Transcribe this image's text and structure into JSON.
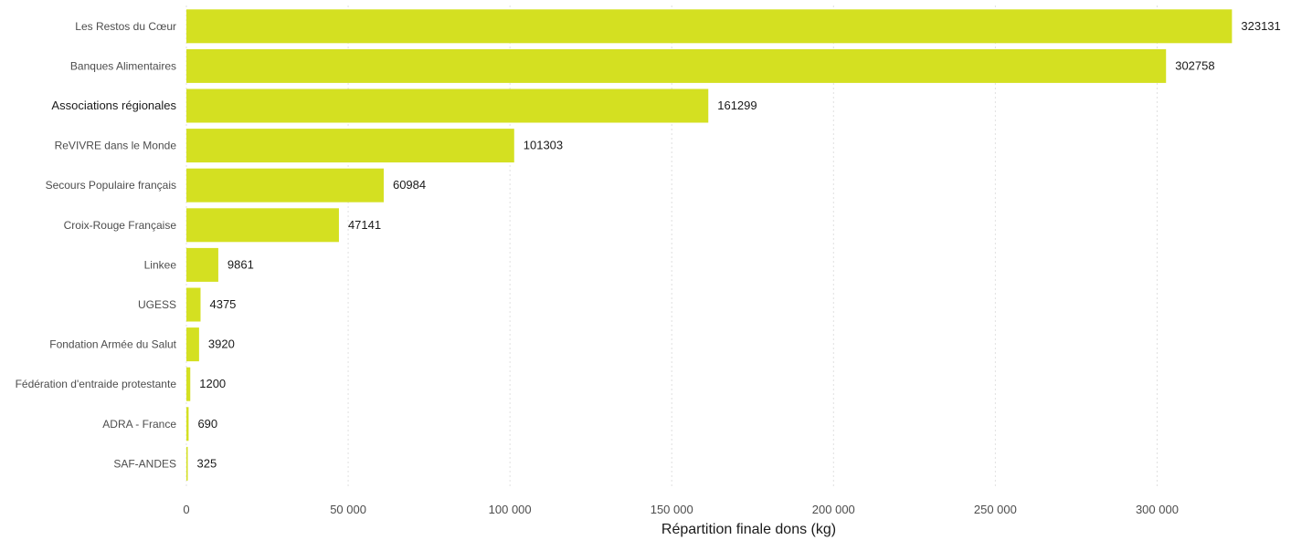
{
  "chart_data": {
    "type": "bar",
    "orientation": "horizontal",
    "categories": [
      "Les Restos du Cœur",
      "Banques Alimentaires",
      "Associations régionales",
      "ReVIVRE dans le Monde",
      "Secours Populaire français",
      "Croix-Rouge Française",
      "Linkee",
      "UGESS",
      "Fondation Armée du Salut",
      "Fédération d'entraide protestante",
      "ADRA - France",
      "SAF-ANDES"
    ],
    "values": [
      323131,
      302758,
      161299,
      101303,
      60984,
      47141,
      9861,
      4375,
      3920,
      1200,
      690,
      325
    ],
    "value_labels": [
      "323131",
      "302758",
      "161299",
      "101303",
      "60984",
      "47141",
      "9861",
      "4375",
      "3920",
      "1200",
      "690",
      "325"
    ],
    "xlabel": "Répartition finale dons (kg)",
    "ylabel": "",
    "xlim": [
      0,
      325000
    ],
    "xticks": [
      0,
      50000,
      100000,
      150000,
      200000,
      250000,
      300000
    ],
    "xtick_labels": [
      "0",
      "50 000",
      "100 000",
      "150 000",
      "200 000",
      "250 000",
      "300 000"
    ],
    "grid": "vertical-dotted",
    "bar_color": "#d4e021"
  }
}
